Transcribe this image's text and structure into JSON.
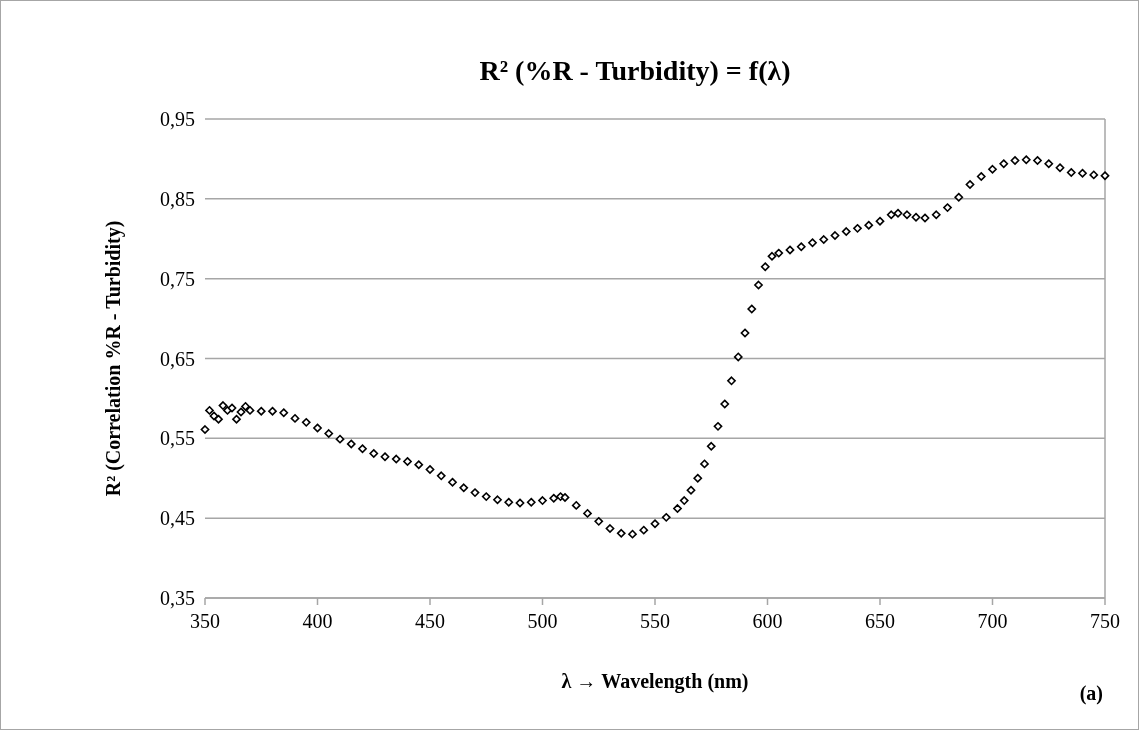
{
  "chart_data": {
    "type": "scatter",
    "title": "R² (%R - Turbidity) = f(λ)",
    "xlabel": "λ → Wavelength (nm)",
    "ylabel": "R² (Correlation %R - Turbidity)",
    "annotations": [
      "(a)"
    ],
    "x": [
      350,
      352,
      354,
      356,
      358,
      360,
      362,
      364,
      366,
      368,
      370,
      375,
      380,
      385,
      390,
      395,
      400,
      405,
      410,
      415,
      420,
      425,
      430,
      435,
      440,
      445,
      450,
      455,
      460,
      465,
      470,
      475,
      480,
      485,
      490,
      495,
      500,
      505,
      508,
      510,
      515,
      520,
      525,
      530,
      535,
      540,
      545,
      550,
      555,
      560,
      563,
      566,
      569,
      572,
      575,
      578,
      581,
      584,
      587,
      590,
      593,
      596,
      599,
      602,
      605,
      610,
      615,
      620,
      625,
      630,
      635,
      640,
      645,
      650,
      655,
      658,
      662,
      666,
      670,
      675,
      680,
      685,
      690,
      695,
      700,
      705,
      710,
      715,
      720,
      725,
      730,
      735,
      740,
      745,
      750
    ],
    "series": [
      {
        "color": "#000000",
        "values": [
          0.561,
          0.585,
          0.578,
          0.574,
          0.591,
          0.585,
          0.588,
          0.574,
          0.583,
          0.59,
          0.585,
          0.584,
          0.584,
          0.582,
          0.575,
          0.57,
          0.563,
          0.556,
          0.549,
          0.543,
          0.537,
          0.531,
          0.527,
          0.524,
          0.521,
          0.517,
          0.511,
          0.503,
          0.495,
          0.488,
          0.482,
          0.477,
          0.473,
          0.47,
          0.469,
          0.47,
          0.472,
          0.475,
          0.477,
          0.476,
          0.466,
          0.456,
          0.446,
          0.437,
          0.431,
          0.43,
          0.435,
          0.443,
          0.451,
          0.462,
          0.472,
          0.485,
          0.5,
          0.518,
          0.54,
          0.565,
          0.593,
          0.622,
          0.652,
          0.682,
          0.712,
          0.742,
          0.765,
          0.778,
          0.782,
          0.786,
          0.79,
          0.795,
          0.799,
          0.804,
          0.809,
          0.813,
          0.817,
          0.822,
          0.83,
          0.832,
          0.83,
          0.827,
          0.826,
          0.83,
          0.839,
          0.852,
          0.868,
          0.878,
          0.887,
          0.894,
          0.898,
          0.899,
          0.898,
          0.894,
          0.889,
          0.883,
          0.882,
          0.88,
          0.879
        ]
      }
    ],
    "xlim": [
      350,
      750
    ],
    "xticks": [
      350,
      400,
      450,
      500,
      550,
      600,
      650,
      700,
      750
    ],
    "ylim": [
      0.35,
      0.95
    ],
    "yticks": [
      {
        "value": 0.35,
        "label": "0,35"
      },
      {
        "value": 0.45,
        "label": "0,45"
      },
      {
        "value": 0.55,
        "label": "0,55"
      },
      {
        "value": 0.65,
        "label": "0,65"
      },
      {
        "value": 0.75,
        "label": "0,75"
      },
      {
        "value": 0.85,
        "label": "0,85"
      },
      {
        "value": 0.95,
        "label": "0,95"
      }
    ],
    "grid": "y",
    "marker": "diamond"
  }
}
